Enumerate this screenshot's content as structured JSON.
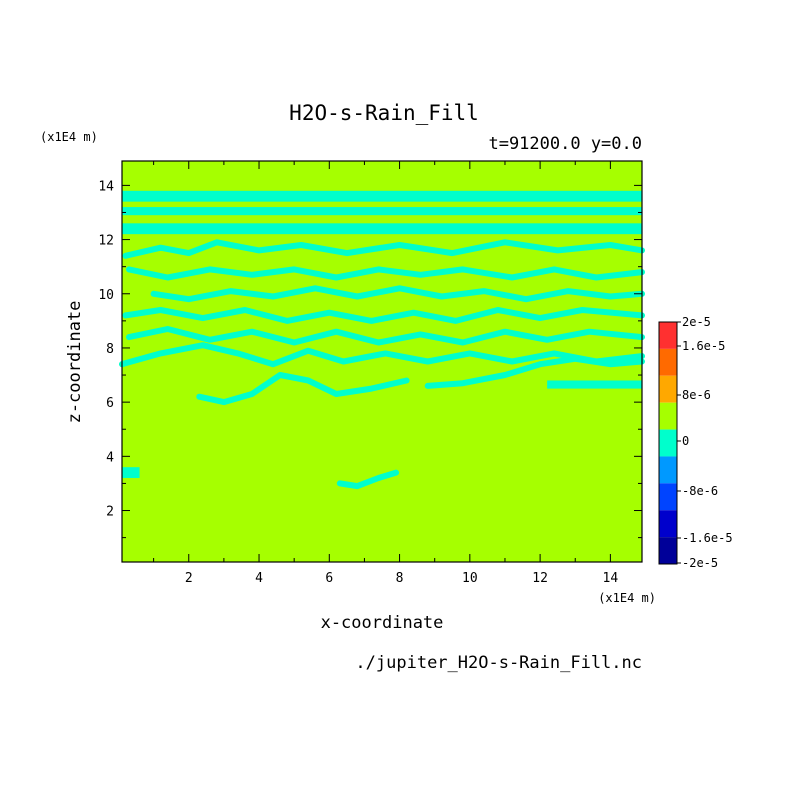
{
  "chart_data": {
    "type": "heatmap",
    "title": "H2O-s-Rain_Fill",
    "subtitle": "t=91200.0 y=0.0",
    "xlabel": "x-coordinate",
    "ylabel": "z-coordinate",
    "x_unit": "(x1E4 m)",
    "y_unit": "(x1E4 m)",
    "filename": "./jupiter_H2O-s-Rain_Fill.nc",
    "xlim": [
      0.1,
      14.9
    ],
    "ylim": [
      0.1,
      14.9
    ],
    "x_ticks": [
      "2",
      "4",
      "6",
      "8",
      "10",
      "12",
      "14"
    ],
    "y_ticks": [
      "2",
      "4",
      "6",
      "8",
      "10",
      "12",
      "14"
    ],
    "background_value_color": "#a6ff00",
    "contour_value_color": "#00ffcc",
    "colorbar": {
      "labels": [
        "2e-5",
        "1.6e-5",
        "8e-6",
        "0",
        "-8e-6",
        "-1.6e-5",
        "-2e-5"
      ],
      "colors": [
        "#ff3030",
        "#ff6a00",
        "#ffa800",
        "#a6ff00",
        "#00ffcc",
        "#0099ff",
        "#0044ff",
        "#0000cc",
        "#000099"
      ]
    },
    "bands": [
      {
        "x": [
          0.1,
          14.9
        ],
        "z": [
          13.4,
          13.8
        ]
      },
      {
        "x": [
          0.1,
          14.9
        ],
        "z": [
          12.9,
          13.2
        ]
      },
      {
        "x": [
          0.1,
          14.9
        ],
        "z": [
          12.2,
          12.6
        ]
      },
      {
        "x": [
          12.2,
          14.9
        ],
        "z": [
          6.5,
          6.8
        ]
      },
      {
        "x": [
          0.1,
          0.6
        ],
        "z": [
          3.2,
          3.6
        ]
      }
    ],
    "contours": [
      [
        [
          0.2,
          11.4
        ],
        [
          1.2,
          11.7
        ],
        [
          2.0,
          11.5
        ],
        [
          2.8,
          11.9
        ],
        [
          4.0,
          11.6
        ],
        [
          5.2,
          11.8
        ],
        [
          6.5,
          11.5
        ],
        [
          8.0,
          11.8
        ],
        [
          9.5,
          11.5
        ],
        [
          11.0,
          11.9
        ],
        [
          12.5,
          11.6
        ],
        [
          14.0,
          11.8
        ],
        [
          14.9,
          11.6
        ]
      ],
      [
        [
          0.3,
          10.9
        ],
        [
          1.4,
          10.6
        ],
        [
          2.6,
          10.9
        ],
        [
          3.8,
          10.7
        ],
        [
          5.0,
          10.9
        ],
        [
          6.2,
          10.6
        ],
        [
          7.4,
          10.9
        ],
        [
          8.6,
          10.7
        ],
        [
          9.8,
          10.9
        ],
        [
          11.2,
          10.6
        ],
        [
          12.4,
          10.9
        ],
        [
          13.6,
          10.6
        ],
        [
          14.9,
          10.8
        ]
      ],
      [
        [
          1.0,
          10.0
        ],
        [
          2.0,
          9.8
        ],
        [
          3.2,
          10.1
        ],
        [
          4.4,
          9.9
        ],
        [
          5.6,
          10.2
        ],
        [
          6.8,
          9.9
        ],
        [
          8.0,
          10.2
        ],
        [
          9.2,
          9.9
        ],
        [
          10.4,
          10.1
        ],
        [
          11.6,
          9.8
        ],
        [
          12.8,
          10.1
        ],
        [
          14.0,
          9.9
        ],
        [
          14.9,
          10.0
        ]
      ],
      [
        [
          0.2,
          9.2
        ],
        [
          1.2,
          9.4
        ],
        [
          2.4,
          9.1
        ],
        [
          3.6,
          9.4
        ],
        [
          4.8,
          9.0
        ],
        [
          6.0,
          9.3
        ],
        [
          7.2,
          9.0
        ],
        [
          8.4,
          9.3
        ],
        [
          9.6,
          9.0
        ],
        [
          10.8,
          9.4
        ],
        [
          12.0,
          9.1
        ],
        [
          13.2,
          9.4
        ],
        [
          14.9,
          9.2
        ]
      ],
      [
        [
          0.3,
          8.4
        ],
        [
          1.4,
          8.7
        ],
        [
          2.6,
          8.3
        ],
        [
          3.8,
          8.6
        ],
        [
          5.0,
          8.2
        ],
        [
          6.2,
          8.6
        ],
        [
          7.4,
          8.2
        ],
        [
          8.6,
          8.5
        ],
        [
          9.8,
          8.2
        ],
        [
          11.0,
          8.6
        ],
        [
          12.2,
          8.3
        ],
        [
          13.4,
          8.6
        ],
        [
          14.9,
          8.4
        ]
      ],
      [
        [
          0.1,
          7.4
        ],
        [
          1.2,
          7.8
        ],
        [
          2.4,
          8.1
        ],
        [
          3.4,
          7.8
        ],
        [
          4.4,
          7.4
        ],
        [
          5.4,
          7.9
        ],
        [
          6.4,
          7.5
        ],
        [
          7.6,
          7.8
        ],
        [
          8.8,
          7.5
        ],
        [
          10.0,
          7.8
        ],
        [
          11.2,
          7.5
        ],
        [
          12.4,
          7.8
        ],
        [
          13.6,
          7.5
        ],
        [
          14.9,
          7.7
        ]
      ],
      [
        [
          2.3,
          6.2
        ],
        [
          3.0,
          6.0
        ],
        [
          3.8,
          6.3
        ],
        [
          4.6,
          7.0
        ],
        [
          5.4,
          6.8
        ],
        [
          6.2,
          6.3
        ],
        [
          7.2,
          6.5
        ],
        [
          8.2,
          6.8
        ]
      ],
      [
        [
          8.8,
          6.6
        ],
        [
          9.8,
          6.7
        ],
        [
          11.0,
          7.0
        ],
        [
          12.0,
          7.4
        ],
        [
          13.0,
          7.6
        ],
        [
          14.0,
          7.4
        ],
        [
          14.9,
          7.5
        ]
      ],
      [
        [
          6.3,
          3.0
        ],
        [
          6.8,
          2.9
        ],
        [
          7.4,
          3.2
        ],
        [
          7.9,
          3.4
        ]
      ]
    ],
    "grid": false,
    "legend": "right"
  }
}
